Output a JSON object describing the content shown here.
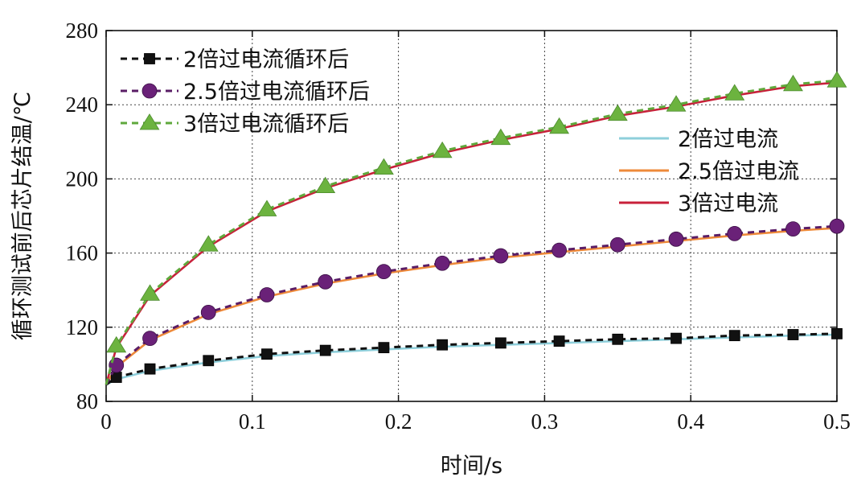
{
  "chart_data": {
    "type": "line",
    "xlabel": "时间/s",
    "ylabel": "循环测试前后芯片结温/℃",
    "xlim": [
      0,
      0.5
    ],
    "ylim": [
      80,
      280
    ],
    "xticks": [
      0,
      0.1,
      0.2,
      0.3,
      0.4,
      0.5
    ],
    "xtick_labels": [
      "0",
      "0.1",
      "0.2",
      "0.3",
      "0.4",
      "0.5"
    ],
    "yticks": [
      80,
      120,
      160,
      200,
      240,
      280
    ],
    "ytick_labels": [
      "80",
      "120",
      "160",
      "200",
      "240",
      "280"
    ],
    "grid": true,
    "legend_positions": [
      "top-left",
      "right"
    ],
    "series": [
      {
        "name": "2倍过电流循环后",
        "color": "#111111",
        "style": "dashed",
        "marker": "square",
        "x": [
          0,
          0.007,
          0.03,
          0.07,
          0.11,
          0.15,
          0.19,
          0.23,
          0.27,
          0.31,
          0.35,
          0.39,
          0.43,
          0.47,
          0.5
        ],
        "y": [
          89,
          93,
          97.5,
          102,
          105.5,
          107.5,
          109,
          110.5,
          111.5,
          112.5,
          113.5,
          114,
          115.5,
          116,
          116.5
        ]
      },
      {
        "name": "2.5倍过电流循环后",
        "color": "#5a1d66",
        "marker_fill": "#6a2178",
        "style": "dashed",
        "marker": "circle",
        "x": [
          0,
          0.007,
          0.03,
          0.07,
          0.11,
          0.15,
          0.19,
          0.23,
          0.27,
          0.31,
          0.35,
          0.39,
          0.43,
          0.47,
          0.5
        ],
        "y": [
          89,
          99.5,
          114,
          128,
          137.5,
          144.5,
          150,
          154.5,
          158.5,
          161.5,
          164.5,
          167.5,
          170.5,
          173,
          174.5
        ]
      },
      {
        "name": "3倍过电流循环后",
        "color": "#5fa83c",
        "marker_fill": "#6cb33f",
        "style": "dashed",
        "marker": "triangle",
        "x": [
          0,
          0.007,
          0.03,
          0.07,
          0.11,
          0.15,
          0.19,
          0.23,
          0.27,
          0.31,
          0.35,
          0.39,
          0.43,
          0.47,
          0.5
        ],
        "y": [
          89,
          110,
          138,
          164.5,
          183.5,
          196,
          206,
          215,
          222,
          228,
          235,
          240,
          246,
          251,
          253
        ]
      },
      {
        "name": "2倍过电流",
        "color": "#8ecfdb",
        "style": "solid",
        "marker": "none",
        "x": [
          0,
          0.007,
          0.03,
          0.07,
          0.11,
          0.15,
          0.19,
          0.23,
          0.27,
          0.31,
          0.35,
          0.39,
          0.43,
          0.47,
          0.5
        ],
        "y": [
          89,
          92,
          96.5,
          101,
          104.5,
          106.5,
          108,
          109.5,
          110.5,
          111.5,
          112.5,
          113.5,
          114.5,
          115.5,
          116
        ]
      },
      {
        "name": "2.5倍过电流",
        "color": "#ee8a3a",
        "style": "solid",
        "marker": "none",
        "x": [
          0,
          0.007,
          0.03,
          0.07,
          0.11,
          0.15,
          0.19,
          0.23,
          0.27,
          0.31,
          0.35,
          0.39,
          0.43,
          0.47,
          0.5
        ],
        "y": [
          89,
          98.5,
          113,
          127,
          136.5,
          143.5,
          149,
          153.5,
          157.5,
          160.5,
          163.5,
          166.5,
          169.5,
          172,
          173.5
        ]
      },
      {
        "name": "3倍过电流",
        "color": "#c8203a",
        "style": "solid",
        "marker": "none",
        "x": [
          0,
          0.007,
          0.03,
          0.07,
          0.11,
          0.15,
          0.19,
          0.23,
          0.27,
          0.31,
          0.35,
          0.39,
          0.43,
          0.47,
          0.5
        ],
        "y": [
          89,
          109,
          137,
          163.5,
          182.5,
          195,
          205,
          214,
          221,
          227,
          234,
          239,
          245,
          250,
          252
        ]
      }
    ]
  }
}
